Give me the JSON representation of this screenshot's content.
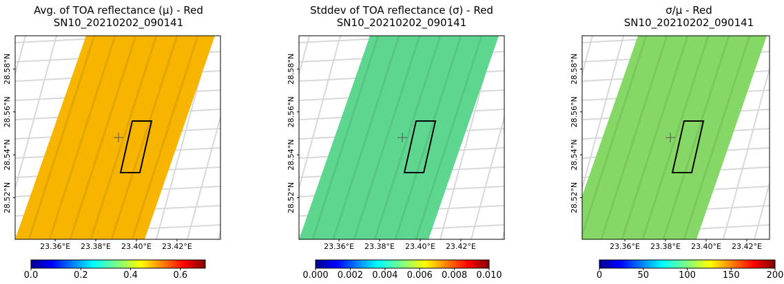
{
  "chart_data": [
    {
      "type": "map",
      "title": "Avg. of TOA reflectance (μ) - Red",
      "subtitle": "SN10_20210202_090141",
      "xlim": [
        23.3403,
        23.4414
      ],
      "ylim": [
        28.5006,
        28.5955
      ],
      "xticks": [
        {
          "value": 23.36,
          "label": "23.36°E"
        },
        {
          "value": 23.38,
          "label": "23.38°E"
        },
        {
          "value": 23.4,
          "label": "23.40°E"
        },
        {
          "value": 23.42,
          "label": "23.42°E"
        }
      ],
      "yticks": [
        {
          "value": 28.52,
          "label": "28.52°N"
        },
        {
          "value": 28.54,
          "label": "28.54°N"
        },
        {
          "value": 28.56,
          "label": "28.56°N"
        },
        {
          "value": 28.58,
          "label": "28.58°N"
        }
      ],
      "color": "#f7b500",
      "colorbar": {
        "lim": [
          0,
          0.7
        ],
        "ticks": [
          {
            "value": 0,
            "label": "0.0"
          },
          0.2,
          0.4,
          0.6
        ]
      }
    },
    {
      "type": "map",
      "title": "Stddev of TOA reflectance (σ) - Red",
      "subtitle": "SN10_20210202_090141",
      "xlim": [
        23.3403,
        23.4414
      ],
      "ylim": [
        28.5006,
        28.5955
      ],
      "xticks": [
        {
          "value": 23.36,
          "label": "23.36°E"
        },
        {
          "value": 23.38,
          "label": "23.38°E"
        },
        {
          "value": 23.4,
          "label": "23.40°E"
        },
        {
          "value": 23.42,
          "label": "23.42°E"
        }
      ],
      "yticks": [
        {
          "value": 28.52,
          "label": "28.52°N"
        },
        {
          "value": 28.54,
          "label": "28.54°N"
        },
        {
          "value": 28.56,
          "label": "28.56°N"
        },
        {
          "value": 28.58,
          "label": "28.58°N"
        }
      ],
      "color": "#5fd690",
      "colorbar": {
        "lim": [
          0,
          0.01
        ],
        "ticks": [
          {
            "value": 0,
            "label": "0.000"
          },
          0.002,
          0.004,
          0.006,
          0.008,
          {
            "value": 0.01,
            "label": "0.010"
          }
        ]
      }
    },
    {
      "type": "map",
      "title": "σ/μ - Red",
      "subtitle": "SN10_20210202_090141",
      "xlim": [
        23.339,
        23.4312
      ],
      "ylim": [
        28.5006,
        28.5955
      ],
      "xticks": [
        {
          "value": 23.36,
          "label": "23.36°E"
        },
        {
          "value": 23.38,
          "label": "23.38°E"
        },
        {
          "value": 23.4,
          "label": "23.40°E"
        },
        {
          "value": 23.42,
          "label": "23.42°E"
        }
      ],
      "yticks": [
        {
          "value": 28.52,
          "label": "28.52°N"
        },
        {
          "value": 28.54,
          "label": "28.54°N"
        },
        {
          "value": 28.56,
          "label": "28.56°N"
        },
        {
          "value": 28.58,
          "label": "28.58°N"
        }
      ],
      "color": "#86d866",
      "colorbar": {
        "lim": [
          0,
          200
        ],
        "ticks": [
          0,
          50,
          100,
          150,
          200
        ]
      }
    }
  ]
}
